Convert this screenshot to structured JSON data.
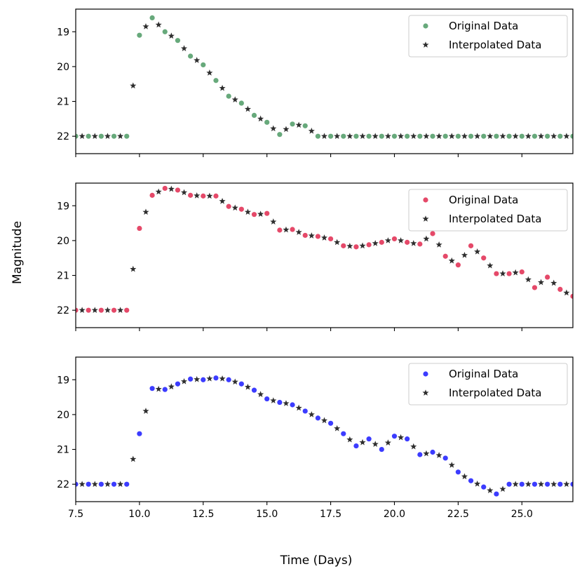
{
  "chart_data": {
    "type": "scatter",
    "xlabel": "Time (Days)",
    "ylabel": "Magnitude",
    "xlim": [
      7.5,
      27.0
    ],
    "ylim": [
      22.5,
      18.35
    ],
    "xticks": [
      7.5,
      10.0,
      12.5,
      15.0,
      17.5,
      20.0,
      22.5,
      25.0
    ],
    "xtick_labels": [
      "7.5",
      "10.0",
      "12.5",
      "15.0",
      "17.5",
      "20.0",
      "22.5",
      "25.0"
    ],
    "yticks": [
      19,
      20,
      21,
      22
    ],
    "ytick_labels": [
      "19",
      "20",
      "21",
      "22"
    ],
    "panels": [
      {
        "color": "#4c9a64",
        "legend": [
          "Original Data",
          "Interpolated Data"
        ],
        "original": [
          [
            7.5,
            22.0
          ],
          [
            8.0,
            22.0
          ],
          [
            8.5,
            22.0
          ],
          [
            9.0,
            22.0
          ],
          [
            9.5,
            22.0
          ],
          [
            10.0,
            19.1
          ],
          [
            10.5,
            18.6
          ],
          [
            11.0,
            19.0
          ],
          [
            11.5,
            19.25
          ],
          [
            12.0,
            19.7
          ],
          [
            12.5,
            19.95
          ],
          [
            13.0,
            20.4
          ],
          [
            13.5,
            20.85
          ],
          [
            14.0,
            21.05
          ],
          [
            14.5,
            21.4
          ],
          [
            15.0,
            21.6
          ],
          [
            15.5,
            21.95
          ],
          [
            16.0,
            21.65
          ],
          [
            16.5,
            21.7
          ],
          [
            17.0,
            22.0
          ],
          [
            17.5,
            22.0
          ],
          [
            18.0,
            22.0
          ],
          [
            18.5,
            22.0
          ],
          [
            19.0,
            22.0
          ],
          [
            19.5,
            22.0
          ],
          [
            20.0,
            22.0
          ],
          [
            20.5,
            22.0
          ],
          [
            21.0,
            22.0
          ],
          [
            21.5,
            22.0
          ],
          [
            22.0,
            22.0
          ],
          [
            22.5,
            22.0
          ],
          [
            23.0,
            22.0
          ],
          [
            23.5,
            22.0
          ],
          [
            24.0,
            22.0
          ],
          [
            24.5,
            22.0
          ],
          [
            25.0,
            22.0
          ],
          [
            25.5,
            22.0
          ],
          [
            26.0,
            22.0
          ],
          [
            26.5,
            22.0
          ],
          [
            27.0,
            22.0
          ]
        ],
        "interpolated": [
          [
            7.75,
            22.0
          ],
          [
            8.25,
            22.0
          ],
          [
            8.75,
            22.0
          ],
          [
            9.25,
            22.0
          ],
          [
            9.75,
            20.55
          ],
          [
            10.25,
            18.85
          ],
          [
            10.75,
            18.8
          ],
          [
            11.25,
            19.12
          ],
          [
            11.75,
            19.48
          ],
          [
            12.25,
            19.82
          ],
          [
            12.75,
            20.18
          ],
          [
            13.25,
            20.62
          ],
          [
            13.75,
            20.95
          ],
          [
            14.25,
            21.22
          ],
          [
            14.75,
            21.5
          ],
          [
            15.25,
            21.78
          ],
          [
            15.75,
            21.8
          ],
          [
            16.25,
            21.68
          ],
          [
            16.75,
            21.85
          ],
          [
            17.25,
            22.0
          ],
          [
            17.75,
            22.0
          ],
          [
            18.25,
            22.0
          ],
          [
            18.75,
            22.0
          ],
          [
            19.25,
            22.0
          ],
          [
            19.75,
            22.0
          ],
          [
            20.25,
            22.0
          ],
          [
            20.75,
            22.0
          ],
          [
            21.25,
            22.0
          ],
          [
            21.75,
            22.0
          ],
          [
            22.25,
            22.0
          ],
          [
            22.75,
            22.0
          ],
          [
            23.25,
            22.0
          ],
          [
            23.75,
            22.0
          ],
          [
            24.25,
            22.0
          ],
          [
            24.75,
            22.0
          ],
          [
            25.25,
            22.0
          ],
          [
            25.75,
            22.0
          ],
          [
            26.25,
            22.0
          ],
          [
            26.75,
            22.0
          ]
        ]
      },
      {
        "color": "#e0294f",
        "legend": [
          "Original Data",
          "Interpolated Data"
        ],
        "original": [
          [
            7.5,
            22.0
          ],
          [
            8.0,
            22.0
          ],
          [
            8.5,
            22.0
          ],
          [
            9.0,
            22.0
          ],
          [
            9.5,
            22.0
          ],
          [
            10.0,
            19.65
          ],
          [
            10.5,
            18.7
          ],
          [
            11.0,
            18.5
          ],
          [
            11.5,
            18.55
          ],
          [
            12.0,
            18.7
          ],
          [
            12.5,
            18.72
          ],
          [
            13.0,
            18.72
          ],
          [
            13.5,
            19.02
          ],
          [
            14.0,
            19.1
          ],
          [
            14.5,
            19.25
          ],
          [
            15.0,
            19.22
          ],
          [
            15.5,
            19.7
          ],
          [
            16.0,
            19.68
          ],
          [
            16.5,
            19.85
          ],
          [
            17.0,
            19.88
          ],
          [
            17.5,
            19.95
          ],
          [
            18.0,
            20.15
          ],
          [
            18.5,
            20.18
          ],
          [
            19.0,
            20.12
          ],
          [
            19.5,
            20.05
          ],
          [
            20.0,
            19.95
          ],
          [
            20.5,
            20.05
          ],
          [
            21.0,
            20.1
          ],
          [
            21.5,
            19.8
          ],
          [
            22.0,
            20.45
          ],
          [
            22.5,
            20.7
          ],
          [
            23.0,
            20.15
          ],
          [
            23.5,
            20.5
          ],
          [
            24.0,
            20.95
          ],
          [
            24.5,
            20.95
          ],
          [
            25.0,
            20.9
          ],
          [
            25.5,
            21.35
          ],
          [
            26.0,
            21.05
          ],
          [
            26.5,
            21.4
          ],
          [
            27.0,
            21.6
          ]
        ],
        "interpolated": [
          [
            7.75,
            22.0
          ],
          [
            8.25,
            22.0
          ],
          [
            8.75,
            22.0
          ],
          [
            9.25,
            22.0
          ],
          [
            9.75,
            20.82
          ],
          [
            10.25,
            19.18
          ],
          [
            10.75,
            18.6
          ],
          [
            11.25,
            18.52
          ],
          [
            11.75,
            18.62
          ],
          [
            12.25,
            18.71
          ],
          [
            12.75,
            18.72
          ],
          [
            13.25,
            18.87
          ],
          [
            13.75,
            19.06
          ],
          [
            14.25,
            19.18
          ],
          [
            14.75,
            19.24
          ],
          [
            15.25,
            19.46
          ],
          [
            15.75,
            19.69
          ],
          [
            16.25,
            19.76
          ],
          [
            16.75,
            19.86
          ],
          [
            17.25,
            19.92
          ],
          [
            17.75,
            20.05
          ],
          [
            18.25,
            20.16
          ],
          [
            18.75,
            20.15
          ],
          [
            19.25,
            20.08
          ],
          [
            19.75,
            20.0
          ],
          [
            20.25,
            20.0
          ],
          [
            20.75,
            20.08
          ],
          [
            21.25,
            19.95
          ],
          [
            21.75,
            20.12
          ],
          [
            22.25,
            20.58
          ],
          [
            22.75,
            20.42
          ],
          [
            23.25,
            20.32
          ],
          [
            23.75,
            20.72
          ],
          [
            24.25,
            20.95
          ],
          [
            24.75,
            20.92
          ],
          [
            25.25,
            21.12
          ],
          [
            25.75,
            21.2
          ],
          [
            26.25,
            21.22
          ],
          [
            26.75,
            21.5
          ]
        ]
      },
      {
        "color": "#1a1aff",
        "legend": [
          "Original Data",
          "Interpolated Data"
        ],
        "original": [
          [
            7.5,
            22.0
          ],
          [
            8.0,
            22.0
          ],
          [
            8.5,
            22.0
          ],
          [
            9.0,
            22.0
          ],
          [
            9.5,
            22.0
          ],
          [
            10.0,
            20.55
          ],
          [
            10.5,
            19.25
          ],
          [
            11.0,
            19.28
          ],
          [
            11.5,
            19.12
          ],
          [
            12.0,
            18.98
          ],
          [
            12.5,
            19.0
          ],
          [
            13.0,
            18.95
          ],
          [
            13.5,
            19.0
          ],
          [
            14.0,
            19.12
          ],
          [
            14.5,
            19.3
          ],
          [
            15.0,
            19.55
          ],
          [
            15.5,
            19.65
          ],
          [
            16.0,
            19.72
          ],
          [
            16.5,
            19.9
          ],
          [
            17.0,
            20.1
          ],
          [
            17.5,
            20.25
          ],
          [
            18.0,
            20.55
          ],
          [
            18.5,
            20.9
          ],
          [
            19.0,
            20.7
          ],
          [
            19.5,
            21.0
          ],
          [
            20.0,
            20.62
          ],
          [
            20.5,
            20.7
          ],
          [
            21.0,
            21.15
          ],
          [
            21.5,
            21.08
          ],
          [
            22.0,
            21.25
          ],
          [
            22.5,
            21.65
          ],
          [
            23.0,
            21.9
          ],
          [
            23.5,
            22.08
          ],
          [
            24.0,
            22.28
          ],
          [
            24.5,
            22.0
          ],
          [
            25.0,
            22.0
          ],
          [
            25.5,
            22.0
          ],
          [
            26.0,
            22.0
          ],
          [
            26.5,
            22.0
          ],
          [
            27.0,
            22.0
          ]
        ],
        "interpolated": [
          [
            7.75,
            22.0
          ],
          [
            8.25,
            22.0
          ],
          [
            8.75,
            22.0
          ],
          [
            9.25,
            22.0
          ],
          [
            9.75,
            21.28
          ],
          [
            10.25,
            19.9
          ],
          [
            10.75,
            19.27
          ],
          [
            11.25,
            19.2
          ],
          [
            11.75,
            19.05
          ],
          [
            12.25,
            18.99
          ],
          [
            12.75,
            18.97
          ],
          [
            13.25,
            18.97
          ],
          [
            13.75,
            19.06
          ],
          [
            14.25,
            19.21
          ],
          [
            14.75,
            19.42
          ],
          [
            15.25,
            19.6
          ],
          [
            15.75,
            19.68
          ],
          [
            16.25,
            19.81
          ],
          [
            16.75,
            20.0
          ],
          [
            17.25,
            20.17
          ],
          [
            17.75,
            20.4
          ],
          [
            18.25,
            20.72
          ],
          [
            18.75,
            20.8
          ],
          [
            19.25,
            20.85
          ],
          [
            19.75,
            20.81
          ],
          [
            20.25,
            20.66
          ],
          [
            20.75,
            20.92
          ],
          [
            21.25,
            21.12
          ],
          [
            21.75,
            21.17
          ],
          [
            22.25,
            21.45
          ],
          [
            22.75,
            21.78
          ],
          [
            23.25,
            21.99
          ],
          [
            23.75,
            22.18
          ],
          [
            24.25,
            22.14
          ],
          [
            24.75,
            22.0
          ],
          [
            25.25,
            22.0
          ],
          [
            25.75,
            22.0
          ],
          [
            26.25,
            22.0
          ],
          [
            26.75,
            22.0
          ]
        ]
      }
    ]
  }
}
